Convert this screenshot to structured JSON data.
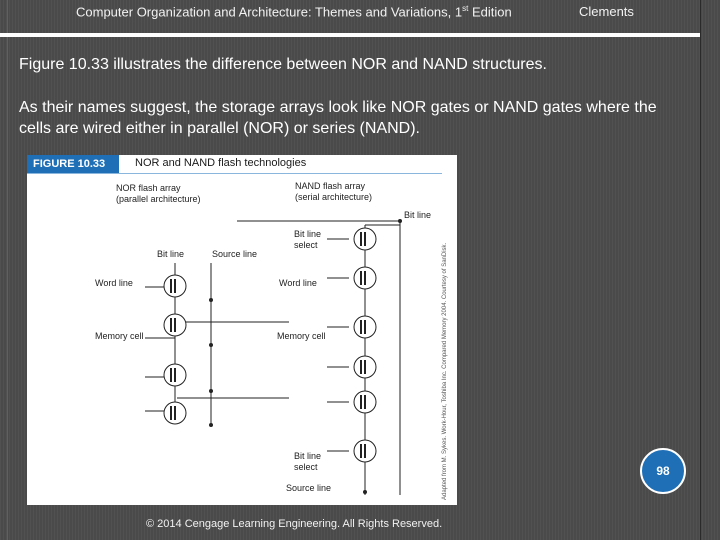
{
  "header": {
    "course": "Computer Organization and Architecture: Themes and Variations, 1",
    "edition_sup": "st",
    "edition_tail": " Edition",
    "section": "Clements"
  },
  "body": {
    "paragraph1": "Figure 10.33 illustrates the difference between NOR and NAND structures.",
    "paragraph2": "As their names suggest, the storage arrays look like NOR gates or NAND gates where the cells are wired either in parallel (NOR) or series (NAND)."
  },
  "figure": {
    "tag": "FIGURE 10.33",
    "title": "NOR and NAND flash technologies",
    "nor_title": "NOR flash array",
    "nor_subtitle": "(parallel architecture)",
    "nand_title": "NAND flash array",
    "nand_subtitle": "(serial architecture)",
    "nor_bit_line": "Bit line",
    "nor_source_line": "Source  line",
    "nor_word_line": "Word line",
    "nor_memory_cell": "Memory cell",
    "nand_bit_line": "Bit  line",
    "nand_bit_line_select_top_1": "Bit line",
    "nand_bit_line_select_top_2": "select",
    "nand_word_line": "Word line",
    "nand_memory_cell": "Memory cell",
    "nand_bit_line_select_bottom_1": "Bit line",
    "nand_bit_line_select_bottom_2": "select",
    "nand_source_line": "Source line",
    "credit": "Adapted from M. Sykes. Work-Hour, Toshiba Inc. Compared Memory 2004. Courtesy of SanDisk."
  },
  "page_number": "98",
  "footer": "© 2014 Cengage Learning Engineering. All Rights Reserved.",
  "colors": {
    "background": "#4a4a4a",
    "badge": "#1f6fb6",
    "figure_tag": "#1f6fb6"
  }
}
